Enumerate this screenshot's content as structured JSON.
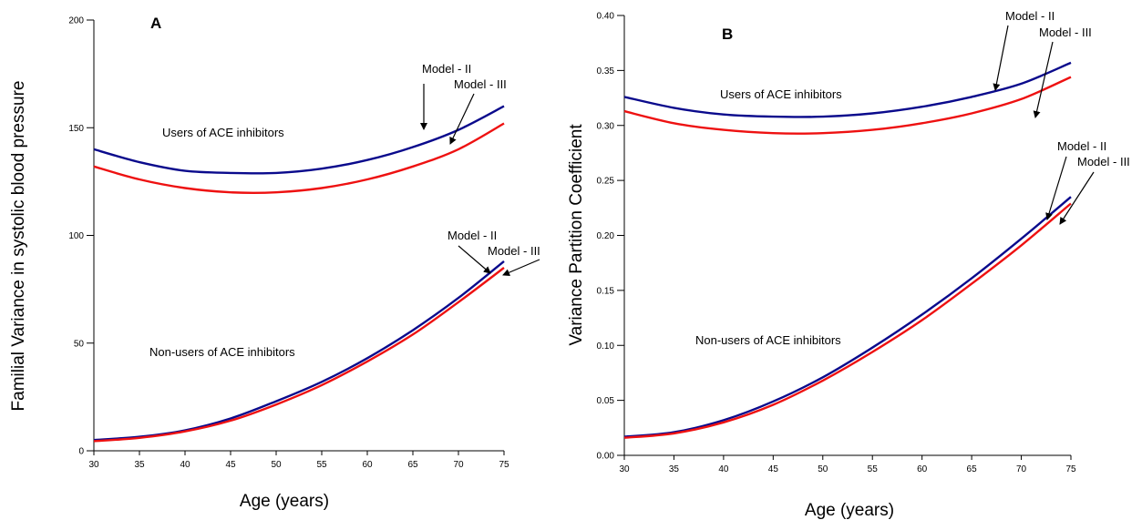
{
  "chart_data": [
    {
      "type": "line",
      "panel_label": "A",
      "xlabel": "Age (years)",
      "ylabel": "Familial Variance in systolic blood pressure",
      "xlim": [
        30,
        75
      ],
      "ylim": [
        0,
        200
      ],
      "x_ticks": [
        "30",
        "35",
        "40",
        "45",
        "50",
        "55",
        "60",
        "65",
        "70",
        "75"
      ],
      "y_ticks": [
        "0",
        "50",
        "100",
        "150",
        "200"
      ],
      "x": [
        30,
        35,
        40,
        45,
        50,
        55,
        60,
        65,
        70,
        75
      ],
      "series": [
        {
          "group": "users",
          "model": "Model - II",
          "color": "#0a0a8c",
          "values": [
            140,
            134,
            130,
            129,
            129,
            131,
            135,
            141,
            149,
            160
          ]
        },
        {
          "group": "users",
          "model": "Model - III",
          "color": "#ee1111",
          "values": [
            132,
            126,
            122,
            120,
            120,
            122,
            126,
            132,
            140,
            152
          ]
        },
        {
          "group": "non-users",
          "model": "Model - II",
          "color": "#0a0a8c",
          "values": [
            5,
            6.5,
            9.5,
            15,
            23,
            32,
            43,
            56,
            71,
            88
          ]
        },
        {
          "group": "non-users",
          "model": "Model - III",
          "color": "#ee1111",
          "values": [
            4.5,
            6,
            9,
            14,
            21.5,
            30.5,
            41.5,
            54,
            69,
            85
          ]
        }
      ],
      "annotations": {
        "users_label": "Users of ACE inhibitors",
        "nonusers_label": "Non-users of ACE inhibitors",
        "users_model2": "Model - II",
        "users_model3": "Model - III",
        "nonusers_model2": "Model - II",
        "nonusers_model3": "Model - III"
      }
    },
    {
      "type": "line",
      "panel_label": "B",
      "xlabel": "Age (years)",
      "ylabel": "Variance Partition Coefficient",
      "xlim": [
        30,
        75
      ],
      "ylim": [
        0,
        0.4
      ],
      "x_ticks": [
        "30",
        "35",
        "40",
        "45",
        "50",
        "55",
        "60",
        "65",
        "70",
        "75"
      ],
      "y_ticks": [
        "0.00",
        "0.05",
        "0.10",
        "0.15",
        "0.20",
        "0.25",
        "0.30",
        "0.35",
        "0.40"
      ],
      "x": [
        30,
        35,
        40,
        45,
        50,
        55,
        60,
        65,
        70,
        75
      ],
      "series": [
        {
          "group": "users",
          "model": "Model - II",
          "color": "#0a0a8c",
          "values": [
            0.326,
            0.316,
            0.31,
            0.308,
            0.308,
            0.311,
            0.317,
            0.326,
            0.338,
            0.357
          ]
        },
        {
          "group": "users",
          "model": "Model - III",
          "color": "#ee1111",
          "values": [
            0.313,
            0.302,
            0.296,
            0.293,
            0.293,
            0.296,
            0.302,
            0.311,
            0.324,
            0.344
          ]
        },
        {
          "group": "non-users",
          "model": "Model - II",
          "color": "#0a0a8c",
          "values": [
            0.017,
            0.021,
            0.032,
            0.049,
            0.071,
            0.098,
            0.128,
            0.161,
            0.197,
            0.235
          ]
        },
        {
          "group": "non-users",
          "model": "Model - III",
          "color": "#ee1111",
          "values": [
            0.016,
            0.02,
            0.03,
            0.046,
            0.068,
            0.094,
            0.123,
            0.156,
            0.191,
            0.229
          ]
        }
      ],
      "annotations": {
        "users_label": "Users of ACE inhibitors",
        "nonusers_label": "Non-users of ACE inhibitors",
        "users_model2": "Model - II",
        "users_model3": "Model - III",
        "nonusers_model2": "Model - II",
        "nonusers_model3": "Model - III"
      }
    }
  ]
}
